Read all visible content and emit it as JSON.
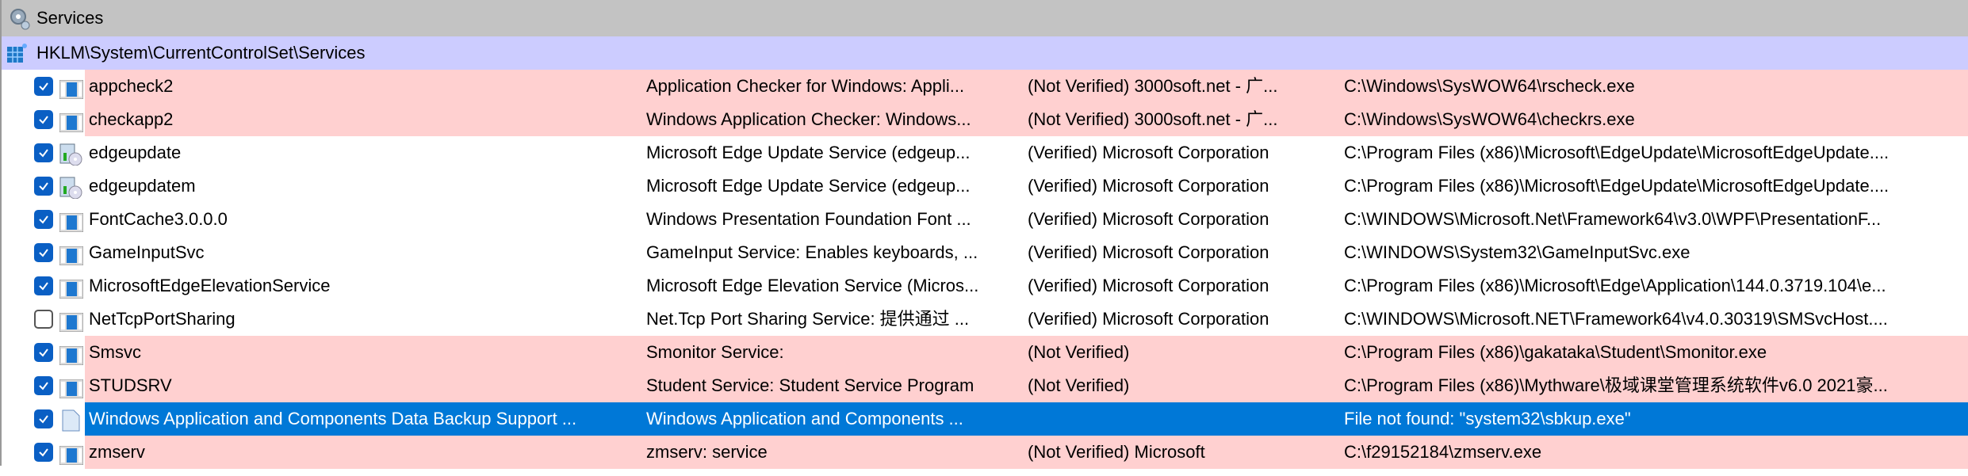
{
  "group": {
    "title": "Services",
    "icon": "gear-icon"
  },
  "key": {
    "path": "HKLM\\System\\CurrentControlSet\\Services",
    "icon": "registry-icon"
  },
  "colors": {
    "not_verified": "#ffd0d0",
    "selected": "#0078d7",
    "group": "#c3c3c3",
    "key": "#ccccff"
  },
  "rows": [
    {
      "name": "appcheck2",
      "description": "Application Checker for Windows: Appli...",
      "publisher": "(Not Verified) 3000soft.net - 广...",
      "path": "C:\\Windows\\SysWOW64\\rscheck.exe",
      "checked": true,
      "state": "pink",
      "icon": "service-icon"
    },
    {
      "name": "checkapp2",
      "description": "Windows Application Checker: Windows...",
      "publisher": "(Not Verified) 3000soft.net - 广...",
      "path": "C:\\Windows\\SysWOW64\\checkrs.exe",
      "checked": true,
      "state": "pink",
      "icon": "service-icon"
    },
    {
      "name": "edgeupdate",
      "description": "Microsoft Edge Update Service (edgeup...",
      "publisher": "(Verified) Microsoft Corporation",
      "path": "C:\\Program Files (x86)\\Microsoft\\EdgeUpdate\\MicrosoftEdgeUpdate....",
      "checked": true,
      "state": "normal",
      "icon": "installer-icon"
    },
    {
      "name": "edgeupdatem",
      "description": "Microsoft Edge Update Service (edgeup...",
      "publisher": "(Verified) Microsoft Corporation",
      "path": "C:\\Program Files (x86)\\Microsoft\\EdgeUpdate\\MicrosoftEdgeUpdate....",
      "checked": true,
      "state": "normal",
      "icon": "installer-icon"
    },
    {
      "name": "FontCache3.0.0.0",
      "description": "Windows Presentation Foundation Font ...",
      "publisher": "(Verified) Microsoft Corporation",
      "path": "C:\\WINDOWS\\Microsoft.Net\\Framework64\\v3.0\\WPF\\PresentationF...",
      "checked": true,
      "state": "normal",
      "icon": "service-icon"
    },
    {
      "name": "GameInputSvc",
      "description": "GameInput Service: Enables keyboards, ...",
      "publisher": "(Verified) Microsoft Corporation",
      "path": "C:\\WINDOWS\\System32\\GameInputSvc.exe",
      "checked": true,
      "state": "normal",
      "icon": "service-icon"
    },
    {
      "name": "MicrosoftEdgeElevationService",
      "description": "Microsoft Edge Elevation Service (Micros...",
      "publisher": "(Verified) Microsoft Corporation",
      "path": "C:\\Program Files (x86)\\Microsoft\\Edge\\Application\\144.0.3719.104\\e...",
      "checked": true,
      "state": "normal",
      "icon": "service-icon"
    },
    {
      "name": "NetTcpPortSharing",
      "description": "Net.Tcp Port Sharing Service: 提供通过 ...",
      "publisher": "(Verified) Microsoft Corporation",
      "path": "C:\\WINDOWS\\Microsoft.NET\\Framework64\\v4.0.30319\\SMSvcHost....",
      "checked": false,
      "state": "normal",
      "icon": "service-icon"
    },
    {
      "name": "Smsvc",
      "description": "Smonitor Service:",
      "publisher": "(Not Verified)",
      "path": "C:\\Program Files (x86)\\gakataka\\Student\\Smonitor.exe",
      "checked": true,
      "state": "pink",
      "icon": "service-icon"
    },
    {
      "name": "STUDSRV",
      "description": "Student Service: Student Service Program",
      "publisher": "(Not Verified)",
      "path": "C:\\Program Files (x86)\\Mythware\\极域课堂管理系统软件v6.0 2021豪...",
      "checked": true,
      "state": "pink",
      "icon": "service-icon"
    },
    {
      "name": "Windows Application and Components Data Backup Support ...",
      "description": "Windows Application and Components ...",
      "publisher": "",
      "path": "File not found: \"system32\\sbkup.exe\"",
      "checked": true,
      "state": "sel",
      "icon": "file-icon"
    },
    {
      "name": "zmserv",
      "description": "zmserv: service",
      "publisher": "(Not Verified) Microsoft",
      "path": "C:\\f29152184\\zmserv.exe",
      "checked": true,
      "state": "pink",
      "icon": "service-icon"
    }
  ]
}
